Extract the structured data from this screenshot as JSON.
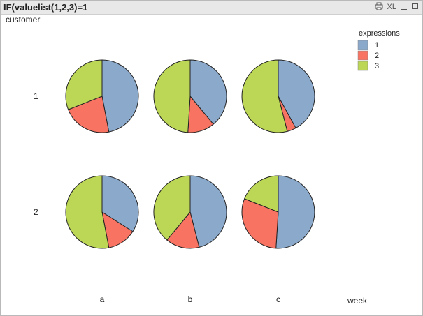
{
  "window": {
    "title": "IF(valuelist(1,2,3)=1",
    "icons": {
      "print": "print-icon",
      "xl_label": "XL",
      "minimize": "minimize-icon",
      "maximize": "maximize-icon"
    }
  },
  "chart_data": {
    "type": "pie",
    "row_dimension_label": "customer",
    "column_dimension_label": "week",
    "rows": [
      "1",
      "2"
    ],
    "columns": [
      "a",
      "b",
      "c"
    ],
    "legend": {
      "title": "expressions",
      "placement": "top-right",
      "entries": [
        {
          "label": "1",
          "color": "#8ba9cb"
        },
        {
          "label": "2",
          "color": "#f87362"
        },
        {
          "label": "3",
          "color": "#bcd656"
        }
      ]
    },
    "series_order": [
      "1",
      "2",
      "3"
    ],
    "pies": [
      {
        "row": "1",
        "column": "a",
        "values": [
          47,
          22,
          31
        ]
      },
      {
        "row": "1",
        "column": "b",
        "values": [
          39,
          12,
          49
        ]
      },
      {
        "row": "1",
        "column": "c",
        "values": [
          42,
          4,
          54
        ]
      },
      {
        "row": "2",
        "column": "a",
        "values": [
          34,
          13,
          53
        ]
      },
      {
        "row": "2",
        "column": "b",
        "values": [
          46,
          15,
          39
        ]
      },
      {
        "row": "2",
        "column": "c",
        "values": [
          51,
          30,
          19
        ]
      }
    ]
  }
}
